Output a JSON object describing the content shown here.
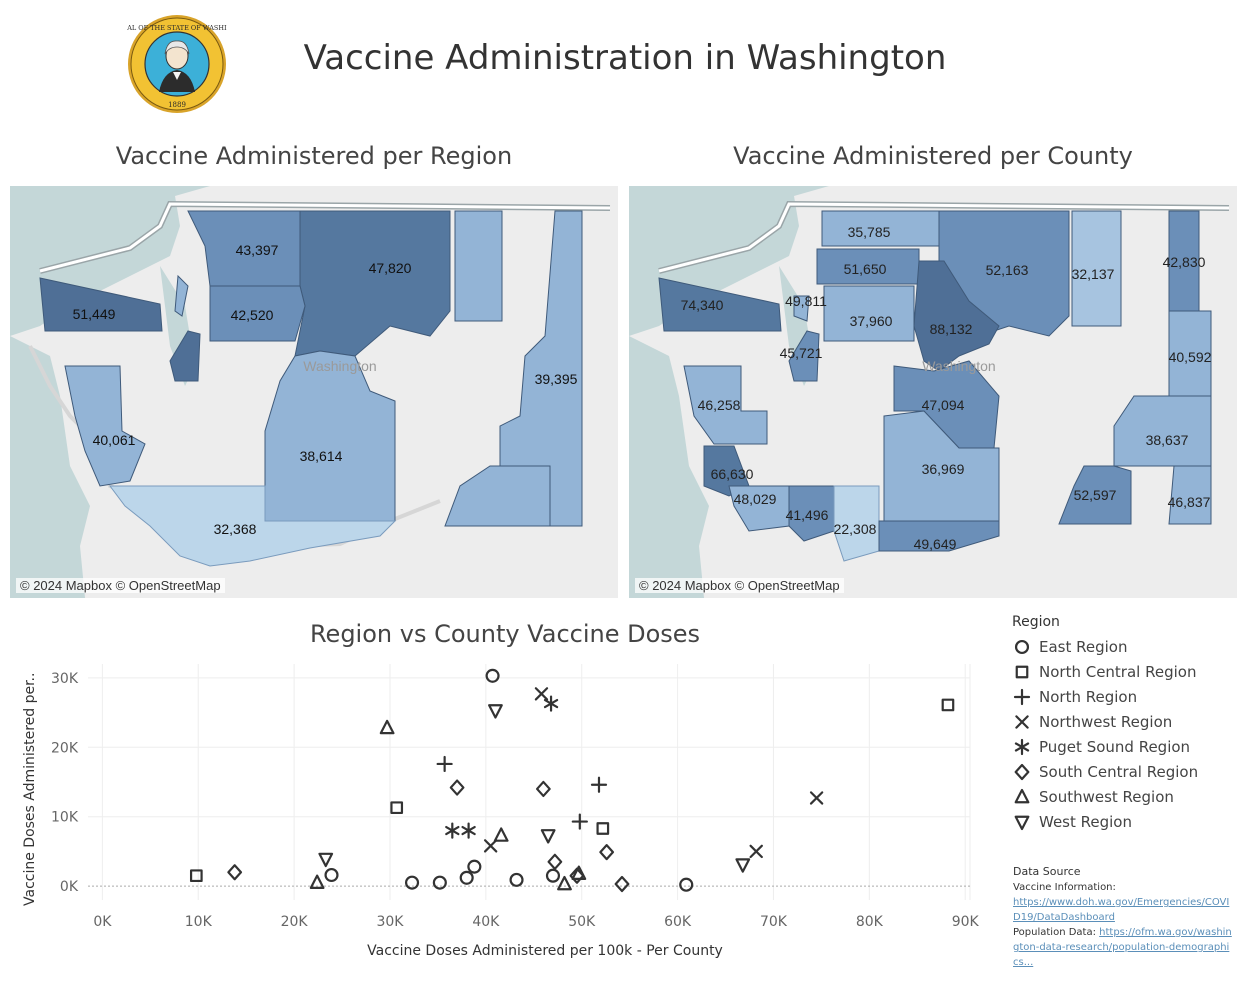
{
  "header": {
    "title": "Vaccine Administration in Washington",
    "seal_text_top": "THE SEAL OF THE STATE OF WASHINGTON",
    "seal_year": "1889"
  },
  "region_map": {
    "title": "Vaccine Administered per Region",
    "attribution": "© 2024 Mapbox © OpenStreetMap",
    "place_label": "Washington",
    "labels": [
      "43,397",
      "47,820",
      "51,449",
      "42,520",
      "39,395",
      "40,061",
      "38,614",
      "32,368"
    ]
  },
  "county_map": {
    "title": "Vaccine Administered per County",
    "attribution": "© 2024 Mapbox © OpenStreetMap",
    "place_label": "Washington",
    "labels": [
      "35,785",
      "51,650",
      "52,163",
      "32,137",
      "42,830",
      "74,340",
      "49,811",
      "37,960",
      "88,132",
      "45,721",
      "40,592",
      "46,258",
      "47,094",
      "38,637",
      "36,969",
      "66,630",
      "48,029",
      "41,496",
      "22,308",
      "49,649",
      "52,597",
      "46,837"
    ]
  },
  "chart_data": {
    "type": "scatter",
    "title": "Region vs County Vaccine Doses",
    "xlabel": "Vaccine Doses Administered per 100k - Per County",
    "ylabel": "Vaccine Doses Administered per..",
    "xlim": [
      -1500,
      90500
    ],
    "ylim": [
      -2000,
      32000
    ],
    "x_ticks": [
      "0K",
      "10K",
      "20K",
      "30K",
      "40K",
      "50K",
      "60K",
      "70K",
      "80K",
      "90K"
    ],
    "x_tick_values": [
      0,
      10000,
      20000,
      30000,
      40000,
      50000,
      60000,
      70000,
      80000,
      90000
    ],
    "y_ticks": [
      "0K",
      "10K",
      "20K",
      "30K"
    ],
    "y_tick_values": [
      0,
      10000,
      20000,
      30000
    ],
    "grid": true,
    "legend_title": "Region",
    "legend_position": "right",
    "series": [
      {
        "name": "East Region",
        "marker": "circle",
        "points": [
          [
            40700,
            30300
          ],
          [
            23900,
            1600
          ],
          [
            32300,
            500
          ],
          [
            35200,
            500
          ],
          [
            38000,
            1200
          ],
          [
            38800,
            2800
          ],
          [
            43200,
            900
          ],
          [
            47000,
            1500
          ],
          [
            60900,
            200
          ]
        ]
      },
      {
        "name": "North Central Region",
        "marker": "square",
        "points": [
          [
            9800,
            1500
          ],
          [
            30700,
            11300
          ],
          [
            52200,
            8300
          ],
          [
            88200,
            26100
          ]
        ]
      },
      {
        "name": "North Region",
        "marker": "plus",
        "points": [
          [
            35700,
            17600
          ],
          [
            51800,
            14600
          ],
          [
            49800,
            9300
          ]
        ]
      },
      {
        "name": "Northwest Region",
        "marker": "x",
        "points": [
          [
            45800,
            27700
          ],
          [
            40500,
            5800
          ],
          [
            68200,
            5000
          ],
          [
            74500,
            12700
          ]
        ]
      },
      {
        "name": "Puget Sound Region",
        "marker": "asterisk",
        "points": [
          [
            46800,
            26300
          ],
          [
            36500,
            8000
          ],
          [
            38200,
            8000
          ]
        ]
      },
      {
        "name": "South Central Region",
        "marker": "diamond",
        "points": [
          [
            13800,
            2000
          ],
          [
            37000,
            14200
          ],
          [
            46000,
            14000
          ],
          [
            47200,
            3500
          ],
          [
            49500,
            1500
          ],
          [
            52600,
            4900
          ],
          [
            54200,
            300
          ]
        ]
      },
      {
        "name": "Southwest Region",
        "marker": "triangle-up",
        "points": [
          [
            29700,
            22800
          ],
          [
            22400,
            500
          ],
          [
            41600,
            7300
          ],
          [
            48200,
            300
          ],
          [
            49700,
            1800
          ]
        ]
      },
      {
        "name": "West Region",
        "marker": "triangle-down",
        "points": [
          [
            41000,
            25300
          ],
          [
            23300,
            3900
          ],
          [
            46500,
            7300
          ],
          [
            66800,
            3100
          ]
        ]
      }
    ]
  },
  "data_source": {
    "heading": "Data Source",
    "vaccine_label": "Vaccine Information:",
    "vaccine_url": "https://www.doh.wa.gov/Emergencies/COVID19/DataDashboard",
    "population_label": "Population Data:",
    "population_url": "https://ofm.wa.gov/washington-data-research/population-demographics..."
  },
  "colors": {
    "water": "#c4d7d8",
    "land": "#ededed",
    "fill_dark": "#4f6f96",
    "fill_mid": "#6b8fb8",
    "fill_light": "#93b4d6",
    "fill_lighter": "#bcd6ea",
    "marker": "#333333"
  }
}
